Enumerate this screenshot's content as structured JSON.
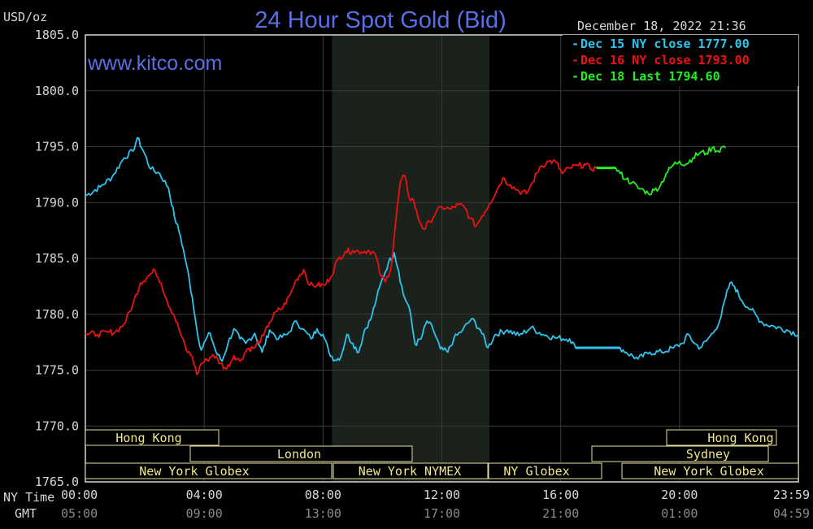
{
  "header": {
    "unit": "USD/oz",
    "title": "24 Hour Spot Gold (Bid)",
    "timestamp": "December 18, 2022 21:36",
    "website": "www.kitco.com"
  },
  "legend": [
    {
      "text": "Dec 15 NY close 1777.00",
      "color": "#2ec4ee"
    },
    {
      "text": "Dec 16 NY close 1793.00",
      "color": "#ee1111"
    },
    {
      "text": "Dec 18 Last 1794.60",
      "color": "#22ee22"
    }
  ],
  "sessions": {
    "row1": [
      "Hong Kong",
      "Hong Kong"
    ],
    "row2": [
      "London",
      "Sydney"
    ],
    "row3": [
      "New York Globex",
      "New York NYMEX",
      "NY Globex",
      "New York Globex"
    ]
  },
  "axis": {
    "ny_time_label": "NY Time",
    "gmt_label": "GMT",
    "ny_ticks": [
      "00:00",
      "04:00",
      "08:00",
      "12:00",
      "16:00",
      "20:00",
      "23:59"
    ],
    "gmt_ticks": [
      "05:00",
      "09:00",
      "13:00",
      "17:00",
      "21:00",
      "01:00",
      "04:59"
    ]
  },
  "chart_data": {
    "type": "line",
    "title": "24 Hour Spot Gold (Bid)",
    "ylabel": "USD/oz",
    "ylim": [
      1765,
      1805
    ],
    "yticks": [
      "1805.0",
      "1800.0",
      "1795.0",
      "1790.0",
      "1785.0",
      "1780.0",
      "1775.0",
      "1770.0",
      "1765.0"
    ],
    "xlim": [
      0,
      24
    ],
    "x_unit": "hours (NY time)",
    "shaded_x_range": [
      8.3,
      13.6
    ],
    "series": [
      {
        "name": "Dec 15 NY close 1777.00",
        "color": "#2ec4ee",
        "points": [
          [
            0,
            1790.6
          ],
          [
            0.5,
            1791.4
          ],
          [
            0.9,
            1792.3
          ],
          [
            1.3,
            1794.0
          ],
          [
            1.6,
            1794.6
          ],
          [
            1.75,
            1795.8
          ],
          [
            2.0,
            1794.3
          ],
          [
            2.2,
            1793.0
          ],
          [
            2.5,
            1792.6
          ],
          [
            2.8,
            1791.3
          ],
          [
            3.0,
            1788.7
          ],
          [
            3.2,
            1787.0
          ],
          [
            3.4,
            1784.5
          ],
          [
            3.6,
            1781.5
          ],
          [
            3.75,
            1778.7
          ],
          [
            3.9,
            1776.8
          ],
          [
            4.05,
            1777.7
          ],
          [
            4.2,
            1778.3
          ],
          [
            4.4,
            1776.6
          ],
          [
            4.6,
            1775.8
          ],
          [
            4.8,
            1777.4
          ],
          [
            5.0,
            1778.7
          ],
          [
            5.2,
            1777.8
          ],
          [
            5.4,
            1777.4
          ],
          [
            5.7,
            1778.3
          ],
          [
            5.95,
            1776.6
          ],
          [
            6.2,
            1778.6
          ],
          [
            6.5,
            1777.8
          ],
          [
            6.8,
            1778.2
          ],
          [
            7.1,
            1779.4
          ],
          [
            7.3,
            1778.7
          ],
          [
            7.6,
            1777.8
          ],
          [
            7.8,
            1778.7
          ],
          [
            8.0,
            1778.2
          ],
          [
            8.2,
            1776.6
          ],
          [
            8.4,
            1775.9
          ],
          [
            8.6,
            1776.2
          ],
          [
            8.8,
            1778.2
          ],
          [
            9.0,
            1777.4
          ],
          [
            9.2,
            1776.6
          ],
          [
            9.4,
            1778.6
          ],
          [
            9.6,
            1779.5
          ],
          [
            9.8,
            1781.4
          ],
          [
            10.0,
            1783.2
          ],
          [
            10.2,
            1784.6
          ],
          [
            10.4,
            1785.5
          ],
          [
            10.55,
            1783.8
          ],
          [
            10.7,
            1781.8
          ],
          [
            10.9,
            1780.6
          ],
          [
            11.1,
            1777.3
          ],
          [
            11.3,
            1777.8
          ],
          [
            11.5,
            1779.4
          ],
          [
            11.7,
            1778.7
          ],
          [
            11.95,
            1776.9
          ],
          [
            12.2,
            1776.6
          ],
          [
            12.4,
            1777.8
          ],
          [
            12.7,
            1778.6
          ],
          [
            13.0,
            1779.6
          ],
          [
            13.3,
            1778.6
          ],
          [
            13.55,
            1777.0
          ],
          [
            13.8,
            1778.2
          ],
          [
            14.2,
            1778.6
          ],
          [
            14.6,
            1778.1
          ],
          [
            15.0,
            1778.8
          ],
          [
            15.4,
            1778.2
          ],
          [
            15.8,
            1777.9
          ],
          [
            16.3,
            1777.8
          ],
          [
            16.5,
            1777.0
          ],
          [
            17.0,
            1777.0
          ],
          [
            18.0,
            1777.0
          ],
          [
            18.2,
            1776.6
          ],
          [
            18.6,
            1776.0
          ],
          [
            19.0,
            1776.6
          ],
          [
            19.4,
            1776.6
          ],
          [
            19.8,
            1777.0
          ],
          [
            20.1,
            1777.4
          ],
          [
            20.3,
            1778.2
          ],
          [
            20.5,
            1777.4
          ],
          [
            20.7,
            1777.0
          ],
          [
            20.9,
            1777.6
          ],
          [
            21.2,
            1778.6
          ],
          [
            21.4,
            1779.8
          ],
          [
            21.55,
            1781.5
          ],
          [
            21.7,
            1782.8
          ],
          [
            21.85,
            1782.5
          ],
          [
            22.1,
            1781.2
          ],
          [
            22.4,
            1780.4
          ],
          [
            22.8,
            1779.2
          ],
          [
            23.2,
            1778.9
          ],
          [
            23.6,
            1778.6
          ],
          [
            24.0,
            1778.2
          ]
        ]
      },
      {
        "name": "Dec 16 NY close 1793.00",
        "color": "#ee1111",
        "points": [
          [
            0,
            1778.3
          ],
          [
            0.4,
            1778.2
          ],
          [
            0.8,
            1778.4
          ],
          [
            1.0,
            1778.4
          ],
          [
            1.3,
            1779.1
          ],
          [
            1.6,
            1780.9
          ],
          [
            1.85,
            1782.8
          ],
          [
            2.1,
            1783.4
          ],
          [
            2.35,
            1783.9
          ],
          [
            2.55,
            1782.8
          ],
          [
            2.75,
            1781.2
          ],
          [
            3.0,
            1779.8
          ],
          [
            3.2,
            1778.3
          ],
          [
            3.4,
            1776.8
          ],
          [
            3.6,
            1776.2
          ],
          [
            3.75,
            1774.6
          ],
          [
            3.9,
            1775.6
          ],
          [
            4.1,
            1775.9
          ],
          [
            4.3,
            1776.4
          ],
          [
            4.55,
            1775.6
          ],
          [
            4.75,
            1775.1
          ],
          [
            5.0,
            1776.3
          ],
          [
            5.2,
            1775.8
          ],
          [
            5.45,
            1776.9
          ],
          [
            5.7,
            1777.0
          ],
          [
            6.0,
            1778.1
          ],
          [
            6.2,
            1779.3
          ],
          [
            6.45,
            1780.3
          ],
          [
            6.65,
            1780.6
          ],
          [
            6.9,
            1781.8
          ],
          [
            7.1,
            1783.1
          ],
          [
            7.35,
            1784.0
          ],
          [
            7.55,
            1782.6
          ],
          [
            7.8,
            1782.6
          ],
          [
            8.05,
            1782.6
          ],
          [
            8.25,
            1783.3
          ],
          [
            8.5,
            1784.9
          ],
          [
            8.75,
            1785.6
          ],
          [
            9.0,
            1785.7
          ],
          [
            9.3,
            1785.6
          ],
          [
            9.55,
            1785.7
          ],
          [
            9.75,
            1785.4
          ],
          [
            9.95,
            1783.4
          ],
          [
            10.1,
            1782.9
          ],
          [
            10.3,
            1784.3
          ],
          [
            10.45,
            1788.4
          ],
          [
            10.6,
            1791.8
          ],
          [
            10.75,
            1792.4
          ],
          [
            10.9,
            1790.4
          ],
          [
            11.05,
            1790.2
          ],
          [
            11.2,
            1788.6
          ],
          [
            11.4,
            1787.6
          ],
          [
            11.6,
            1788.3
          ],
          [
            11.8,
            1789.1
          ],
          [
            12.0,
            1789.6
          ],
          [
            12.3,
            1789.4
          ],
          [
            12.55,
            1789.8
          ],
          [
            12.75,
            1789.6
          ],
          [
            12.95,
            1788.6
          ],
          [
            13.15,
            1787.9
          ],
          [
            13.35,
            1788.8
          ],
          [
            13.6,
            1789.9
          ],
          [
            13.85,
            1791.1
          ],
          [
            14.05,
            1792.2
          ],
          [
            14.3,
            1791.6
          ],
          [
            14.6,
            1791.0
          ],
          [
            14.85,
            1790.8
          ],
          [
            15.05,
            1791.8
          ],
          [
            15.3,
            1793.2
          ],
          [
            15.6,
            1793.7
          ],
          [
            15.85,
            1793.6
          ],
          [
            16.05,
            1792.6
          ],
          [
            16.3,
            1793.1
          ],
          [
            16.6,
            1793.3
          ],
          [
            16.85,
            1793.4
          ],
          [
            17.0,
            1793.0
          ],
          [
            17.2,
            1793.1
          ]
        ]
      },
      {
        "name": "Dec 18 Last 1794.60",
        "color": "#22ee22",
        "points": [
          [
            17.2,
            1793.1
          ],
          [
            17.6,
            1793.1
          ],
          [
            17.85,
            1793.1
          ],
          [
            18.0,
            1792.6
          ],
          [
            18.2,
            1792.1
          ],
          [
            18.4,
            1791.8
          ],
          [
            18.6,
            1791.3
          ],
          [
            18.8,
            1791.1
          ],
          [
            18.95,
            1790.8
          ],
          [
            19.15,
            1791.1
          ],
          [
            19.35,
            1791.5
          ],
          [
            19.55,
            1792.6
          ],
          [
            19.8,
            1793.4
          ],
          [
            20.0,
            1793.7
          ],
          [
            20.2,
            1793.4
          ],
          [
            20.45,
            1794.0
          ],
          [
            20.7,
            1794.5
          ],
          [
            20.9,
            1794.4
          ],
          [
            21.1,
            1794.9
          ],
          [
            21.3,
            1794.6
          ],
          [
            21.45,
            1795.0
          ],
          [
            21.55,
            1794.9
          ]
        ]
      }
    ]
  }
}
